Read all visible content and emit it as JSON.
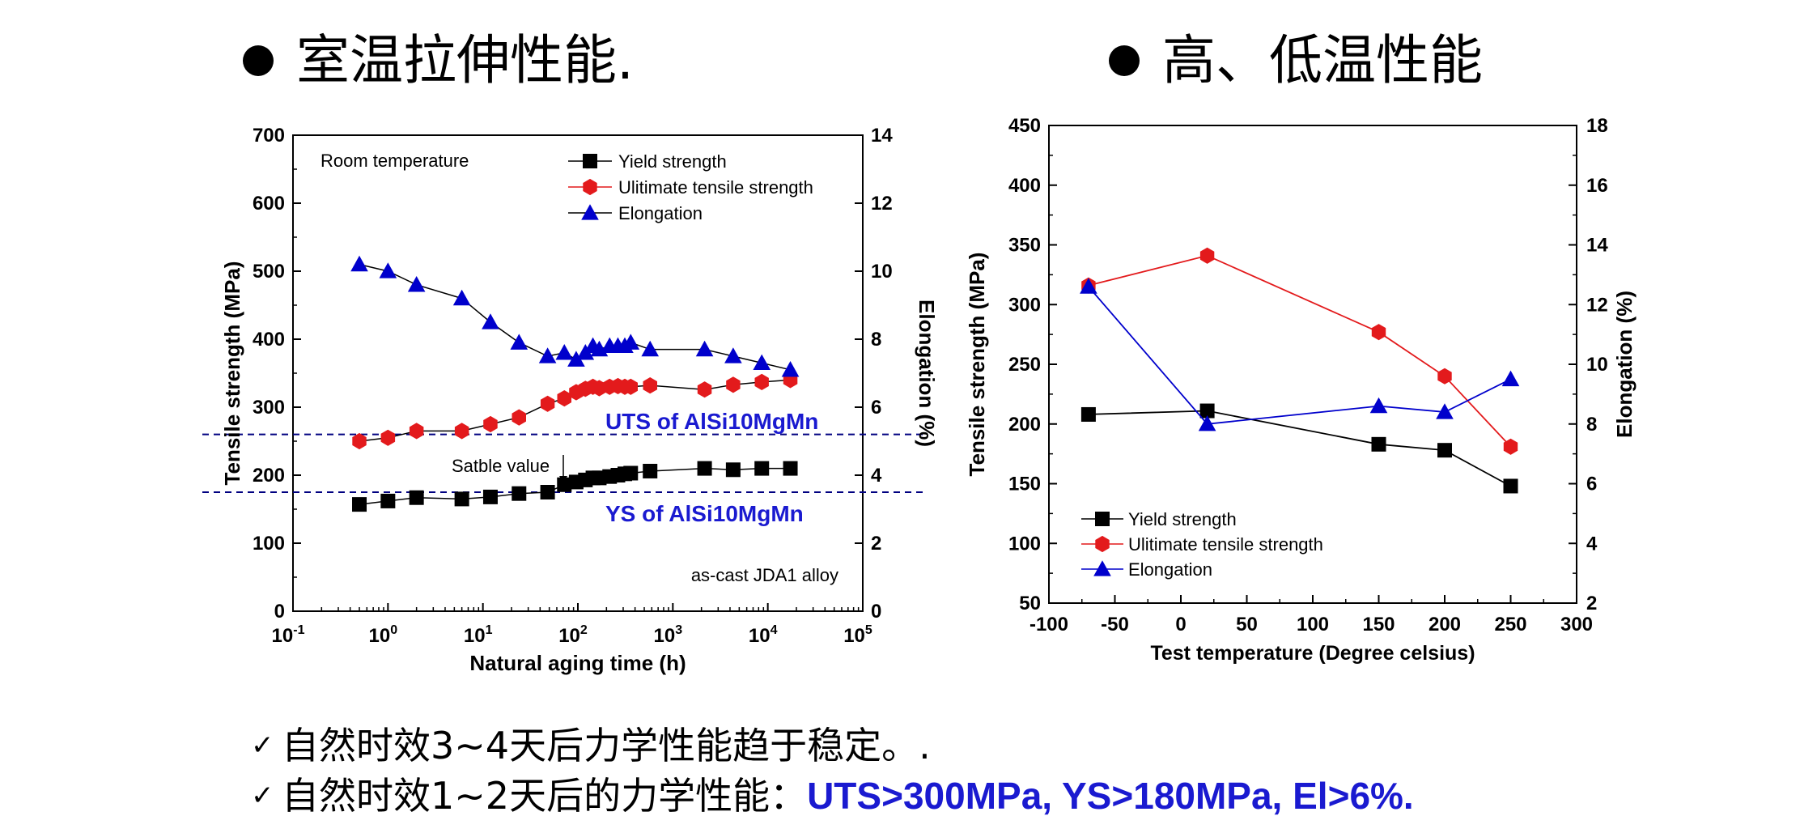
{
  "headings": {
    "left": "室温拉伸性能.",
    "right": "高、低温性能"
  },
  "bullets": [
    {
      "text": "自然时效3~4天后力学性能趋于稳定。.",
      "highlight": ""
    },
    {
      "text": "自然时效1~2天后的力学性能：",
      "highlight": "UTS>300MPa, YS>180MPa, El>6%."
    }
  ],
  "chart_data": [
    {
      "type": "scatter",
      "xscale": "log",
      "xlabel": "Natural aging time (h)",
      "ylabel": "Tensile strength (MPa)",
      "y2label": "Elongation (%)",
      "xlim": [
        0.1,
        100000
      ],
      "ylim": [
        0,
        700
      ],
      "y2lim": [
        0,
        14
      ],
      "xticks": [
        0.1,
        1,
        10,
        100,
        1000,
        10000,
        100000
      ],
      "yticks": [
        0,
        100,
        200,
        300,
        400,
        500,
        600,
        700
      ],
      "y2ticks": [
        0,
        2,
        4,
        6,
        8,
        10,
        12,
        14
      ],
      "annotations": {
        "condition": "Room temperature",
        "alloy": "as-cast JDA1 alloy",
        "stable": "Satble value",
        "uts_ref_label": "UTS of AlSi10MgMn",
        "ys_ref_label": "YS of AlSi10MgMn"
      },
      "reference_lines": {
        "uts": 260,
        "ys": 175
      },
      "legend_position": "top-right",
      "colors": {
        "yield": "#000000",
        "uts": "#e31a1c",
        "elong": "#0000cc",
        "ref": "#000080"
      },
      "series": [
        {
          "name": "Yield strength",
          "axis": "left",
          "x": [
            0.5,
            1,
            2,
            6,
            12,
            24,
            48,
            72,
            96,
            120,
            144,
            168,
            216,
            264,
            312,
            360,
            576,
            2160,
            4320,
            8640,
            17280
          ],
          "y": [
            157,
            162,
            167,
            165,
            168,
            173,
            175,
            186,
            190,
            193,
            196,
            196,
            198,
            200,
            202,
            203,
            206,
            210,
            208,
            210,
            210
          ]
        },
        {
          "name": "Ulitimate tensile strength",
          "axis": "left",
          "x": [
            0.5,
            1,
            2,
            6,
            12,
            24,
            48,
            72,
            96,
            120,
            144,
            168,
            216,
            264,
            312,
            360,
            576,
            2160,
            4320,
            8640,
            17280
          ],
          "y": [
            250,
            255,
            265,
            265,
            275,
            285,
            305,
            313,
            322,
            327,
            330,
            328,
            330,
            331,
            330,
            330,
            332,
            326,
            333,
            337,
            340
          ]
        },
        {
          "name": "Elongation",
          "axis": "right",
          "x": [
            0.5,
            1,
            2,
            6,
            12,
            24,
            48,
            72,
            96,
            120,
            144,
            168,
            216,
            264,
            312,
            360,
            576,
            2160,
            4320,
            8640,
            17280
          ],
          "y": [
            10.2,
            10.0,
            9.6,
            9.2,
            8.5,
            7.9,
            7.5,
            7.6,
            7.4,
            7.6,
            7.8,
            7.7,
            7.8,
            7.8,
            7.8,
            7.9,
            7.7,
            7.7,
            7.5,
            7.3,
            7.1
          ]
        }
      ]
    },
    {
      "type": "line",
      "xlabel": "Test temperature (Degree celsius)",
      "ylabel": "Tensile strength (MPa)",
      "y2label": "Elongation (%)",
      "xlim": [
        -100,
        300
      ],
      "ylim": [
        50,
        450
      ],
      "y2lim": [
        2,
        18
      ],
      "xticks": [
        -100,
        -50,
        0,
        50,
        100,
        150,
        200,
        250,
        300
      ],
      "yticks": [
        50,
        100,
        150,
        200,
        250,
        300,
        350,
        400,
        450
      ],
      "y2ticks": [
        2,
        4,
        6,
        8,
        10,
        12,
        14,
        16,
        18
      ],
      "legend_position": "bottom-left",
      "colors": {
        "yield": "#000000",
        "uts": "#e31a1c",
        "elong": "#0000cc"
      },
      "series": [
        {
          "name": "Yield strength",
          "axis": "left",
          "x": [
            -70,
            20,
            150,
            200,
            250
          ],
          "y": [
            208,
            211,
            183,
            178,
            148
          ]
        },
        {
          "name": "Ulitimate tensile strength",
          "axis": "left",
          "x": [
            -70,
            20,
            150,
            200,
            250
          ],
          "y": [
            316,
            341,
            277,
            240,
            181
          ]
        },
        {
          "name": "Elongation",
          "axis": "right",
          "x": [
            -70,
            20,
            150,
            200,
            250
          ],
          "y": [
            12.6,
            8.0,
            8.6,
            8.4,
            9.5
          ]
        }
      ]
    }
  ]
}
